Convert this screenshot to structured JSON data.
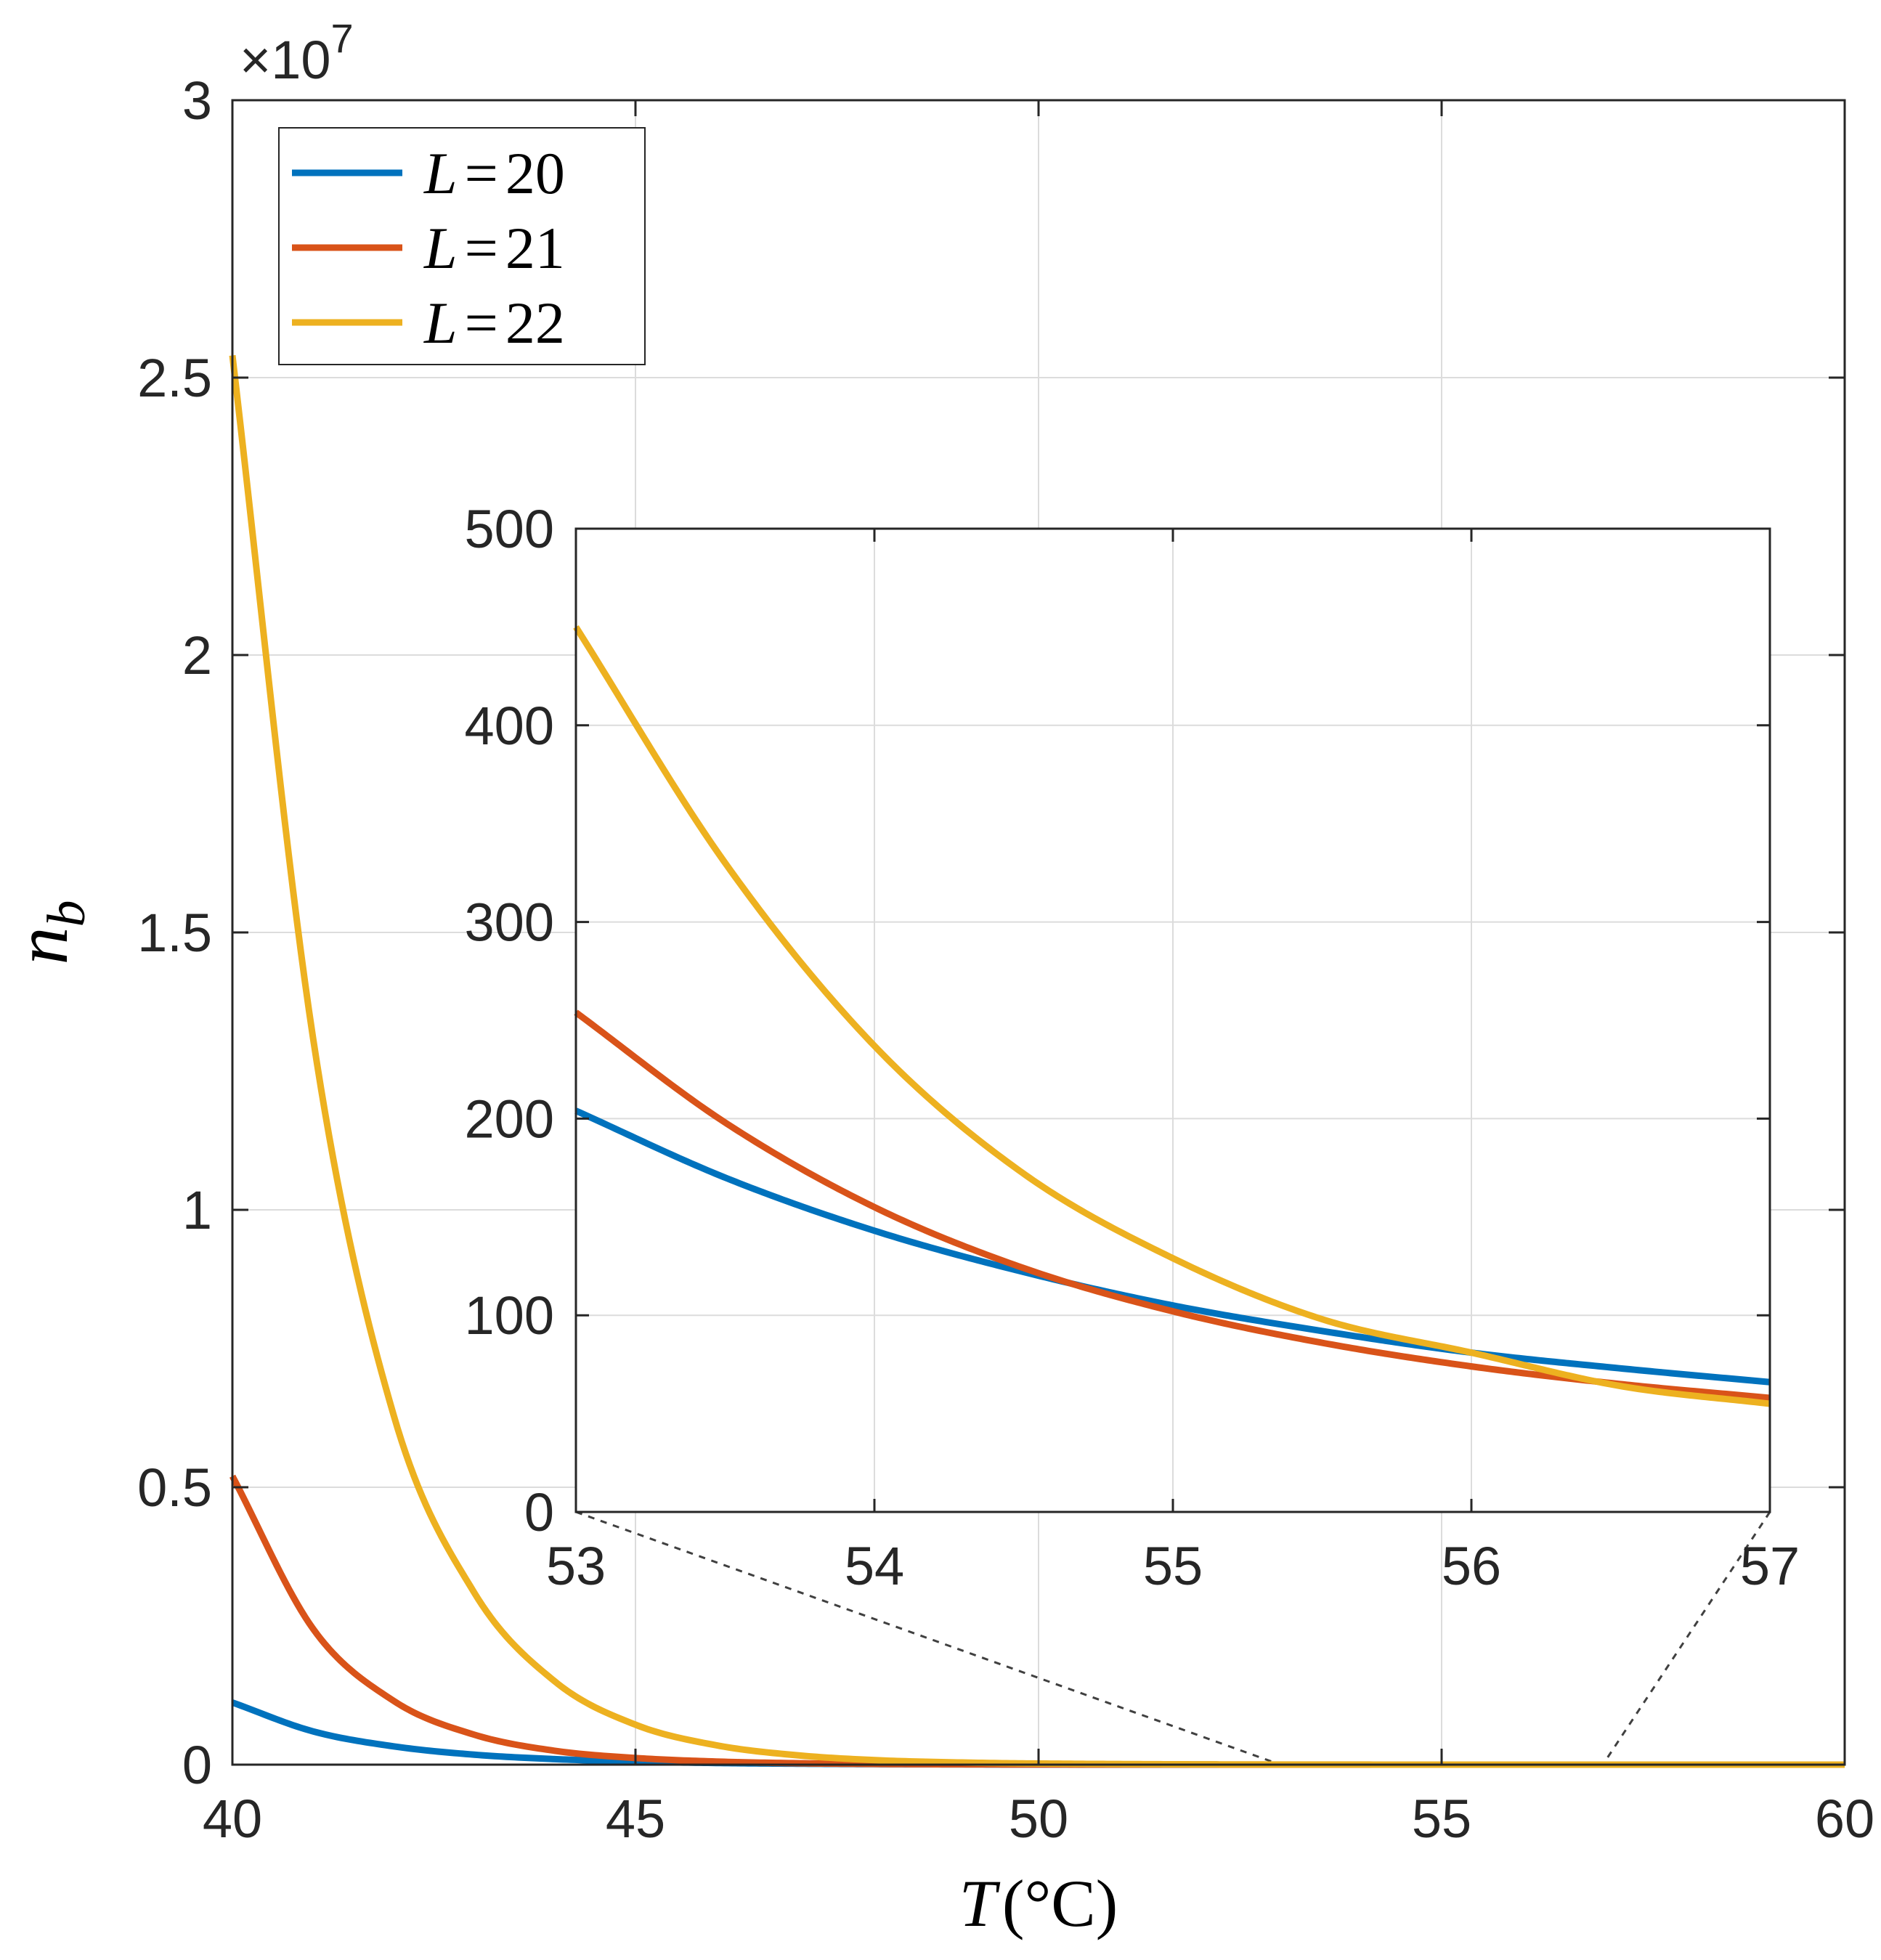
{
  "chart_data": [
    {
      "type": "line",
      "role": "main",
      "title": "",
      "xlabel": {
        "variable": "T",
        "unit": "(°C)"
      },
      "ylabel": "n_b",
      "y_exponent_label": "×10^7",
      "xlim": [
        40,
        60
      ],
      "ylim": [
        0,
        3
      ],
      "x_ticks": [
        "40",
        "45",
        "50",
        "55",
        "60"
      ],
      "y_ticks": [
        "0",
        "0.5",
        "1",
        "1.5",
        "2",
        "2.5",
        "3"
      ],
      "grid": true,
      "legend_position": "top-left",
      "colors": {
        "L20": "#0072BD",
        "L21": "#D95319",
        "L22": "#EDB120",
        "axis": "#262626",
        "grid": "#DCDCDC"
      },
      "x": [
        40,
        41,
        42,
        43,
        44,
        45,
        46,
        47,
        48,
        49,
        50,
        52,
        54,
        56,
        58,
        60
      ],
      "series": [
        {
          "name": "L = 20",
          "color": "#0072BD",
          "values": [
            0.112,
            0.06,
            0.033,
            0.018,
            0.01,
            0.0055,
            0.003,
            0.0017,
            0.0009,
            0.0005,
            0.0003,
            0.0001,
            0,
            0,
            0,
            0
          ]
        },
        {
          "name": "L = 21",
          "color": "#D95319",
          "values": [
            0.52,
            0.245,
            0.115,
            0.054,
            0.025,
            0.012,
            0.0056,
            0.0026,
            0.0012,
            0.0006,
            0.0003,
            0.0001,
            0,
            0,
            0,
            0
          ]
        },
        {
          "name": "L = 22",
          "color": "#EDB120",
          "values": [
            2.54,
            1.31,
            0.63,
            0.31,
            0.15,
            0.072,
            0.035,
            0.017,
            0.008,
            0.004,
            0.002,
            0.0005,
            0.0001,
            0,
            0,
            0
          ]
        }
      ],
      "legend": [
        {
          "var": "L",
          "value": "20"
        },
        {
          "var": "L",
          "value": "21"
        },
        {
          "var": "L",
          "value": "22"
        }
      ]
    },
    {
      "type": "line",
      "role": "inset",
      "xlim": [
        53,
        57
      ],
      "ylim": [
        0,
        500
      ],
      "x_ticks": [
        "53",
        "54",
        "55",
        "56",
        "57"
      ],
      "y_ticks": [
        "0",
        "100",
        "200",
        "300",
        "400",
        "500"
      ],
      "grid": true,
      "x": [
        53,
        53.5,
        54,
        54.5,
        55,
        55.5,
        56,
        56.5,
        57
      ],
      "series": [
        {
          "name": "L = 20",
          "color": "#0072BD",
          "values": [
            204,
            170,
            143,
            122,
            105,
            92,
            81,
            73,
            66
          ]
        },
        {
          "name": "L = 21",
          "color": "#D95319",
          "values": [
            254,
            198,
            155,
            124,
            102,
            86,
            74,
            65,
            58
          ]
        },
        {
          "name": "L = 22",
          "color": "#EDB120",
          "values": [
            450,
            330,
            237,
            172,
            129,
            98,
            81,
            64,
            55
          ]
        }
      ],
      "zoom_source_range": [
        53,
        57
      ]
    }
  ]
}
